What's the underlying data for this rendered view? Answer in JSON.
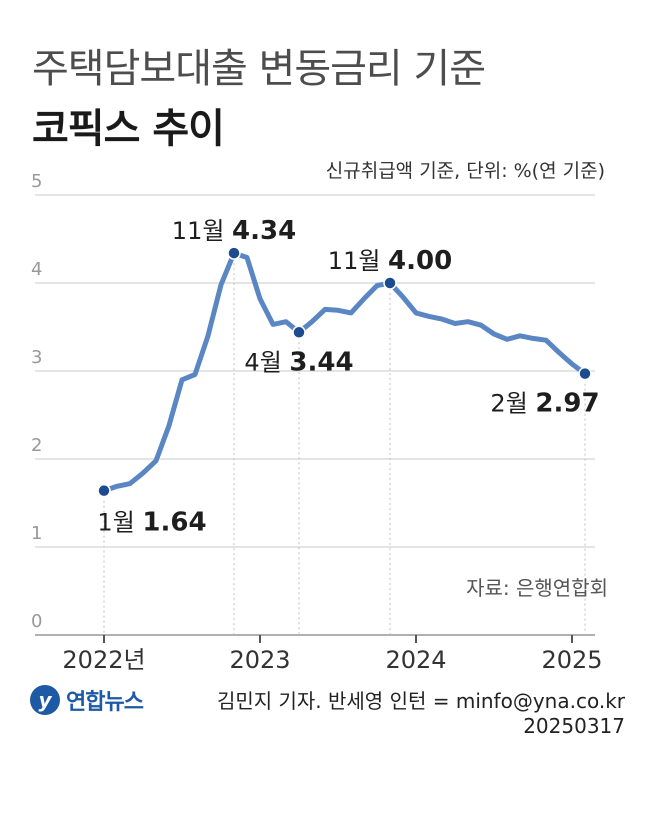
{
  "header": {
    "title_line1": "주택담보대출 변동금리 기준",
    "title_line2": "코픽스 추이",
    "unit_note": "신규취급액 기준, 단위: %(연 기준)"
  },
  "source_note": "자료: 은행연합회",
  "footer": {
    "logo_text": "연합뉴스",
    "credit": "김민지 기자. 반세영 인턴 = minfo@yna.co.kr",
    "date": "20250317"
  },
  "colors": {
    "line": "#5b86c4",
    "point": "#1d4b8f",
    "grid": "#c8c8c8",
    "axis": "#b0b0b0",
    "tick": "#999999"
  },
  "chart_data": {
    "type": "line",
    "title": "코픽스 추이",
    "ylim": [
      0,
      5
    ],
    "yticks": [
      "0",
      "1",
      "2",
      "3",
      "4",
      "5"
    ],
    "xticks": [
      {
        "label": "2022년",
        "x": "2022-01"
      },
      {
        "label": "2023",
        "x": "2023-01"
      },
      {
        "label": "2024",
        "x": "2024-01"
      },
      {
        "label": "2025",
        "x": "2025-01"
      }
    ],
    "x": [
      "2022-01",
      "2022-02",
      "2022-03",
      "2022-04",
      "2022-05",
      "2022-06",
      "2022-07",
      "2022-08",
      "2022-09",
      "2022-10",
      "2022-11",
      "2022-12",
      "2023-01",
      "2023-02",
      "2023-03",
      "2023-04",
      "2023-05",
      "2023-06",
      "2023-07",
      "2023-08",
      "2023-09",
      "2023-10",
      "2023-11",
      "2023-12",
      "2024-01",
      "2024-02",
      "2024-03",
      "2024-04",
      "2024-05",
      "2024-06",
      "2024-07",
      "2024-08",
      "2024-09",
      "2024-10",
      "2024-11",
      "2024-12",
      "2025-01",
      "2025-02"
    ],
    "values": [
      1.64,
      1.69,
      1.72,
      1.84,
      1.98,
      2.38,
      2.9,
      2.96,
      3.4,
      3.98,
      4.34,
      4.29,
      3.82,
      3.53,
      3.56,
      3.44,
      3.56,
      3.7,
      3.69,
      3.66,
      3.82,
      3.97,
      4.0,
      3.84,
      3.66,
      3.62,
      3.59,
      3.54,
      3.56,
      3.52,
      3.42,
      3.36,
      3.4,
      3.37,
      3.35,
      3.21,
      3.08,
      2.97
    ],
    "grid": true,
    "annotations": [
      {
        "index": 0,
        "month": "1월",
        "value": "1.64",
        "pos": "below-right"
      },
      {
        "index": 10,
        "month": "11월",
        "value": "4.34",
        "pos": "above"
      },
      {
        "index": 15,
        "month": "4월",
        "value": "3.44",
        "pos": "below"
      },
      {
        "index": 22,
        "month": "11월",
        "value": "4.00",
        "pos": "above"
      },
      {
        "index": 37,
        "month": "2월",
        "value": "2.97",
        "pos": "below-left"
      }
    ]
  }
}
